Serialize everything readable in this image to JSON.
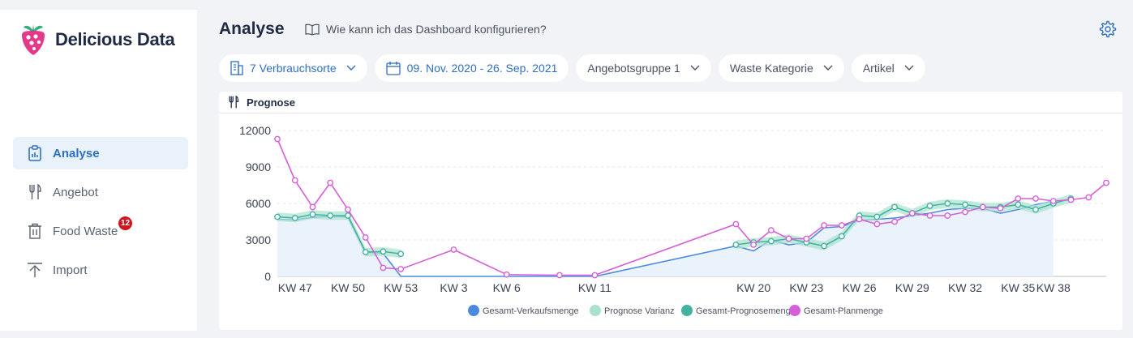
{
  "app": {
    "name": "Delicious Data"
  },
  "sidebar": {
    "items": [
      {
        "label": "Analyse",
        "icon": "clipboard-icon",
        "active": true
      },
      {
        "label": "Angebot",
        "icon": "fork-knife-icon",
        "active": false
      },
      {
        "label": "Food Waste",
        "icon": "trash-icon",
        "active": false,
        "badge": "12"
      },
      {
        "label": "Import",
        "icon": "upload-icon",
        "active": false
      }
    ]
  },
  "header": {
    "title": "Analyse",
    "help_link": "Wie kann ich das Dashboard konfigurieren?",
    "settings_icon": "gear-icon"
  },
  "filters": {
    "locations": "7 Verbrauchsorte",
    "date_range": "09. Nov. 2020 - 26. Sep. 2021",
    "offer_group": "Angebotsgruppe 1",
    "waste_category": "Waste Kategorie",
    "article": "Artikel"
  },
  "panel": {
    "title": "Prognose",
    "icon": "fork-knife-icon"
  },
  "colors": {
    "accent": "#2f6fc0",
    "sales": "#4a8be0",
    "forecast_variance": "#a8e2cc",
    "forecast": "#43b3a1",
    "plan": "#d55fd8",
    "badge": "#d0161f"
  },
  "chart_data": {
    "type": "line",
    "title": "",
    "xlabel": "",
    "ylabel": "",
    "ylim": [
      0,
      12000
    ],
    "yticks": [
      0,
      3000,
      6000,
      9000,
      12000
    ],
    "xticks": [
      {
        "label": "KW 47",
        "week": 47
      },
      {
        "label": "KW 50",
        "week": 50
      },
      {
        "label": "KW 53",
        "week": 53
      },
      {
        "label": "KW 3",
        "week": 56
      },
      {
        "label": "KW 6",
        "week": 59
      },
      {
        "label": "KW 11",
        "week": 64
      },
      {
        "label": "KW 20",
        "week": 73
      },
      {
        "label": "KW 23",
        "week": 76
      },
      {
        "label": "KW 26",
        "week": 79
      },
      {
        "label": "KW 29",
        "week": 82
      },
      {
        "label": "KW 32",
        "week": 85
      },
      {
        "label": "KW 35",
        "week": 88
      },
      {
        "label": "KW 38",
        "week": 90
      }
    ],
    "legend": [
      "Gesamt-Verkaufsmenge",
      "Prognose Varianz",
      "Gesamt-Prognosemenge",
      "Gesamt-Planmenge"
    ],
    "legend_position": "bottom",
    "series": [
      {
        "name": "Gesamt-Verkaufsmenge",
        "color": "#4a8be0",
        "points": [
          [
            46,
            4700
          ],
          [
            47,
            4650
          ],
          [
            48,
            4850
          ],
          [
            49,
            4950
          ],
          [
            50,
            4900
          ],
          [
            51,
            2000
          ],
          [
            52,
            1900
          ],
          [
            53,
            0
          ],
          [
            54,
            0
          ],
          [
            55,
            0
          ],
          [
            56,
            0
          ],
          [
            57,
            0
          ],
          [
            58,
            0
          ],
          [
            59,
            0
          ],
          [
            60,
            0
          ],
          [
            61,
            0
          ],
          [
            62,
            0
          ],
          [
            63,
            0
          ],
          [
            64,
            0
          ],
          [
            72,
            2500
          ],
          [
            73,
            2100
          ],
          [
            74,
            3000
          ],
          [
            75,
            2600
          ],
          [
            76,
            2800
          ],
          [
            77,
            4000
          ],
          [
            78,
            4100
          ],
          [
            79,
            4600
          ],
          [
            80,
            4700
          ],
          [
            81,
            4800
          ],
          [
            82,
            5000
          ],
          [
            83,
            5200
          ],
          [
            84,
            5500
          ],
          [
            85,
            5600
          ],
          [
            86,
            5600
          ],
          [
            87,
            5200
          ],
          [
            88,
            5500
          ],
          [
            89,
            5900
          ],
          [
            90,
            6200
          ]
        ]
      },
      {
        "name": "Gesamt-Prognosemenge",
        "color": "#43b3a1",
        "points": [
          [
            46,
            4900
          ],
          [
            47,
            4800
          ],
          [
            48,
            5100
          ],
          [
            49,
            5000
          ],
          [
            50,
            5000
          ],
          [
            51,
            2000
          ],
          [
            52,
            2050
          ],
          [
            53,
            1850
          ],
          [
            72,
            2600
          ],
          [
            73,
            2800
          ],
          [
            74,
            2900
          ],
          [
            75,
            3100
          ],
          [
            76,
            2800
          ],
          [
            77,
            2500
          ],
          [
            78,
            3300
          ],
          [
            79,
            5000
          ],
          [
            80,
            4900
          ],
          [
            81,
            5700
          ],
          [
            82,
            5200
          ],
          [
            83,
            5800
          ],
          [
            84,
            6000
          ],
          [
            85,
            5900
          ],
          [
            86,
            5700
          ],
          [
            87,
            5700
          ],
          [
            88,
            5900
          ],
          [
            89,
            5500
          ],
          [
            90,
            6000
          ],
          [
            91,
            6400
          ]
        ]
      },
      {
        "name": "Gesamt-Planmenge",
        "color": "#d55fd8",
        "points": [
          [
            46,
            11300
          ],
          [
            47,
            7900
          ],
          [
            48,
            5700
          ],
          [
            49,
            7700
          ],
          [
            50,
            5500
          ],
          [
            51,
            3200
          ],
          [
            52,
            700
          ],
          [
            53,
            600
          ],
          [
            56,
            2200
          ],
          [
            59,
            150
          ],
          [
            62,
            100
          ],
          [
            64,
            100
          ],
          [
            72,
            4300
          ],
          [
            73,
            2600
          ],
          [
            74,
            3800
          ],
          [
            75,
            3100
          ],
          [
            76,
            3100
          ],
          [
            77,
            4200
          ],
          [
            78,
            4200
          ],
          [
            79,
            4700
          ],
          [
            80,
            4300
          ],
          [
            81,
            4500
          ],
          [
            82,
            5200
          ],
          [
            83,
            5000
          ],
          [
            84,
            5000
          ],
          [
            85,
            5300
          ],
          [
            86,
            5700
          ],
          [
            87,
            5600
          ],
          [
            88,
            6400
          ],
          [
            89,
            6400
          ],
          [
            90,
            6200
          ],
          [
            91,
            6300
          ],
          [
            92,
            6500
          ],
          [
            93,
            7700
          ]
        ]
      }
    ]
  }
}
